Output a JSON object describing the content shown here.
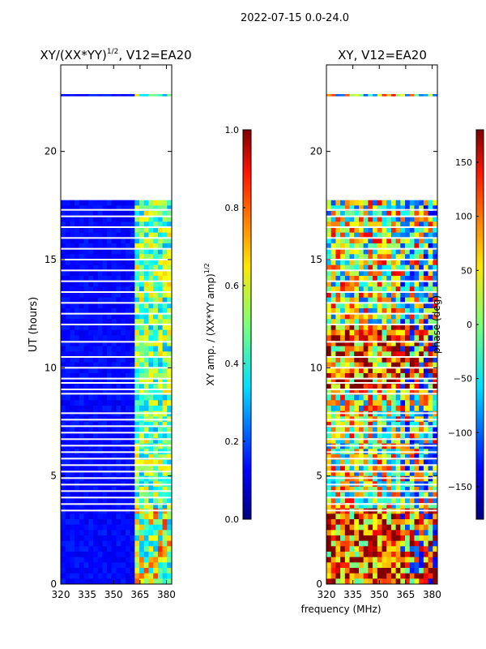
{
  "suptitle": "2022-07-15 0.0-24.0",
  "xlabel_shared": "frequency (MHz)",
  "panels": [
    {
      "id": "left",
      "title": "XY/(XX*YY)",
      "title_exp": "1/2",
      "title_suffix": ", V12=EA20",
      "ylabel": "UT (hours)",
      "colorbar": {
        "label": "XY amp. / (XX*YY amp)",
        "label_exp": "1/2",
        "ticks": [
          "0.0",
          "0.2",
          "0.4",
          "0.6",
          "0.8",
          "1.0"
        ],
        "tick_values": [
          0.0,
          0.2,
          0.4,
          0.6,
          0.8,
          1.0
        ],
        "range": [
          0.0,
          1.0
        ]
      }
    },
    {
      "id": "right",
      "title": "XY, V12=EA20",
      "ylabel": "",
      "colorbar": {
        "label": "phase (deg)",
        "ticks": [
          "−150",
          "−100",
          "−50",
          "0",
          "50",
          "100",
          "150"
        ],
        "tick_values": [
          -150,
          -100,
          -50,
          0,
          50,
          100,
          150
        ],
        "range": [
          -180,
          180
        ]
      }
    }
  ],
  "chart_data": {
    "type": "heatmap",
    "x_range": [
      320,
      383
    ],
    "y_range": [
      0,
      24
    ],
    "x_ticks": [
      "320",
      "335",
      "350",
      "365",
      "380"
    ],
    "x_tick_values": [
      320,
      335,
      350,
      365,
      380
    ],
    "y_ticks": [
      "0",
      "5",
      "10",
      "15",
      "20"
    ],
    "y_tick_values": [
      0,
      5,
      10,
      15,
      20
    ],
    "colormap": "jet",
    "data_gaps_hours": [
      [
        17.75,
        22.55
      ],
      [
        22.65,
        24.0
      ]
    ],
    "flagged_rows_hours": [
      3.4,
      3.7,
      4.0,
      4.3,
      4.6,
      4.9,
      5.2,
      5.5,
      5.8,
      6.1,
      6.4,
      6.7,
      7.0,
      7.3,
      7.6,
      7.9,
      8.8,
      9.0,
      9.3,
      9.5,
      10.0,
      10.5,
      11.2,
      12.0,
      12.5,
      13.0,
      13.5,
      14.0,
      14.5,
      15.0,
      15.5,
      16.0,
      16.5,
      17.0,
      17.3
    ]
  }
}
